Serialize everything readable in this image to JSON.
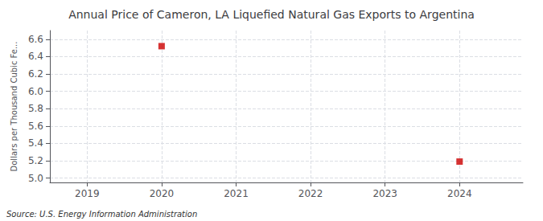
{
  "chart_data": {
    "type": "scatter",
    "title": "Annual Price of Cameron, LA Liquefied Natural Gas Exports to Argentina",
    "ylabel": "Dollars per Thousand Cubic Fe...",
    "annotation": "Source: U.S. Energy Information Administration",
    "x": [
      2020,
      2024
    ],
    "values": [
      6.52,
      5.19
    ],
    "color": "#cc0000",
    "marker": "square",
    "xlim": [
      2018.5,
      2024.85
    ],
    "xticks": [
      2019,
      2020,
      2021,
      2022,
      2023,
      2024
    ],
    "ylim": [
      4.95,
      6.7
    ],
    "yticks": [
      {
        "value": 5,
        "label": "5.0"
      },
      5.2,
      5.4,
      5.6,
      5.8,
      {
        "value": 6,
        "label": "6.0"
      },
      6.2,
      6.4,
      6.6
    ],
    "grid": true
  }
}
